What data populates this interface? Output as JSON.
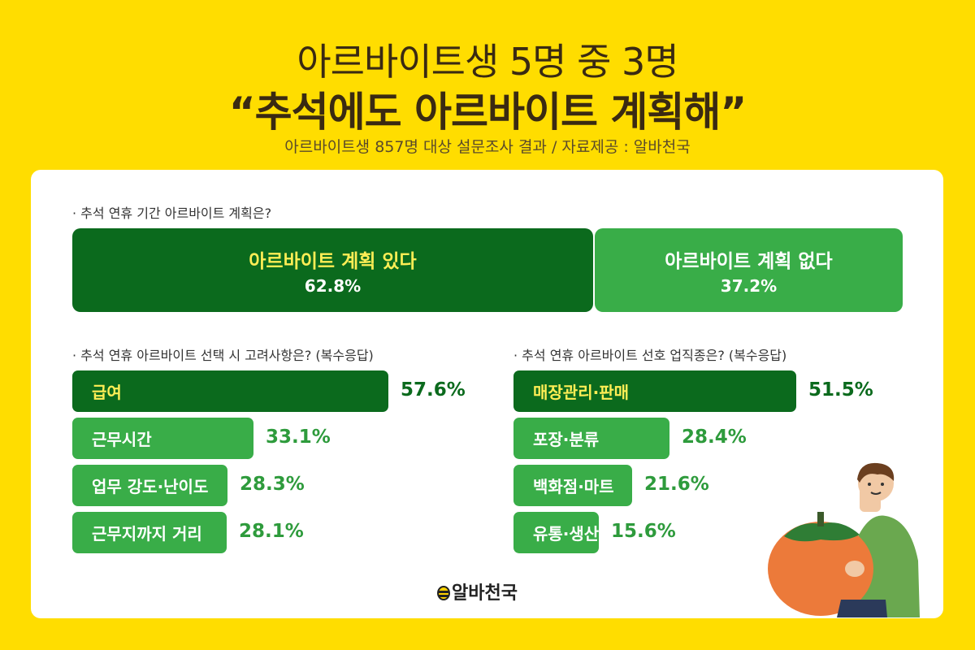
{
  "header": {
    "line1": "아르바이트생 5명 중 3명",
    "line2": "“추석에도 아르바이트 계획해”",
    "subtitle": "아르바이트생 857명 대상 설문조사 결과 / 자료제공 : 알바천국"
  },
  "chart_data": [
    {
      "type": "bar",
      "title": "· 추석 연휴 기간 아르바이트 계획은?",
      "categories": [
        "아르바이트 계획 있다",
        "아르바이트 계획 없다"
      ],
      "values": [
        62.8,
        37.2
      ],
      "labels": [
        "62.8%",
        "37.2%"
      ]
    },
    {
      "type": "bar",
      "title": "· 추석 연휴 아르바이트 선택 시 고려사항은? (복수응답)",
      "categories": [
        "급여",
        "근무시간",
        "업무 강도·난이도",
        "근무지까지 거리"
      ],
      "values": [
        57.6,
        33.1,
        28.3,
        28.1
      ],
      "labels": [
        "57.6%",
        "33.1%",
        "28.3%",
        "28.1%"
      ]
    },
    {
      "type": "bar",
      "title": "· 추석 연휴 아르바이트 선호 업직종은? (복수응답)",
      "categories": [
        "매장관리·판매",
        "포장·분류",
        "백화점·마트",
        "유통·생산"
      ],
      "values": [
        51.5,
        28.4,
        21.6,
        15.6
      ],
      "labels": [
        "51.5%",
        "28.4%",
        "21.6%",
        "15.6%"
      ]
    }
  ],
  "logo": {
    "text": "알바천국"
  },
  "colors": {
    "background": "#FFDD00",
    "dark_green": "#0b6a1d",
    "green": "#39ad48",
    "highlight": "#FFEE55"
  }
}
